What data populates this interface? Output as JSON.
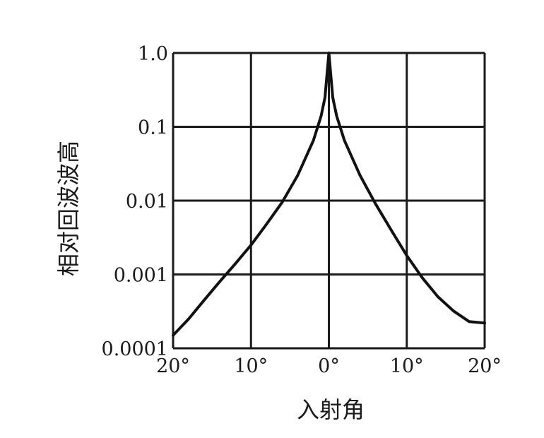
{
  "chart_data": {
    "type": "line",
    "title": "",
    "xlabel": "入射角",
    "ylabel": "相对回波波高",
    "xlim": [
      -20,
      20
    ],
    "ylim": [
      0.0001,
      1.0
    ],
    "yscale": "log",
    "grid": true,
    "x_ticks": [
      -20,
      -10,
      0,
      10,
      20
    ],
    "x_tick_labels": [
      "20°",
      "10°",
      "0°",
      "10°",
      "20°"
    ],
    "y_ticks": [
      0.0001,
      0.001,
      0.01,
      0.1,
      1.0
    ],
    "y_tick_labels": [
      "0.0001",
      "0.001",
      "0.01",
      "0.1",
      "1.0"
    ],
    "series": [
      {
        "color": "#111111",
        "x": [
          -20,
          -18,
          -16,
          -14,
          -12,
          -10,
          -8,
          -6,
          -4,
          -2,
          -1,
          -0.5,
          0,
          0.5,
          1,
          2,
          4,
          6,
          8,
          10,
          12,
          14,
          16,
          18,
          20
        ],
        "y": [
          0.00015,
          0.00025,
          0.00045,
          0.0008,
          0.0014,
          0.0025,
          0.0048,
          0.0095,
          0.022,
          0.065,
          0.14,
          0.25,
          1.0,
          0.25,
          0.14,
          0.065,
          0.022,
          0.009,
          0.004,
          0.0018,
          0.0009,
          0.0005,
          0.00032,
          0.00023,
          0.00022
        ]
      }
    ]
  }
}
